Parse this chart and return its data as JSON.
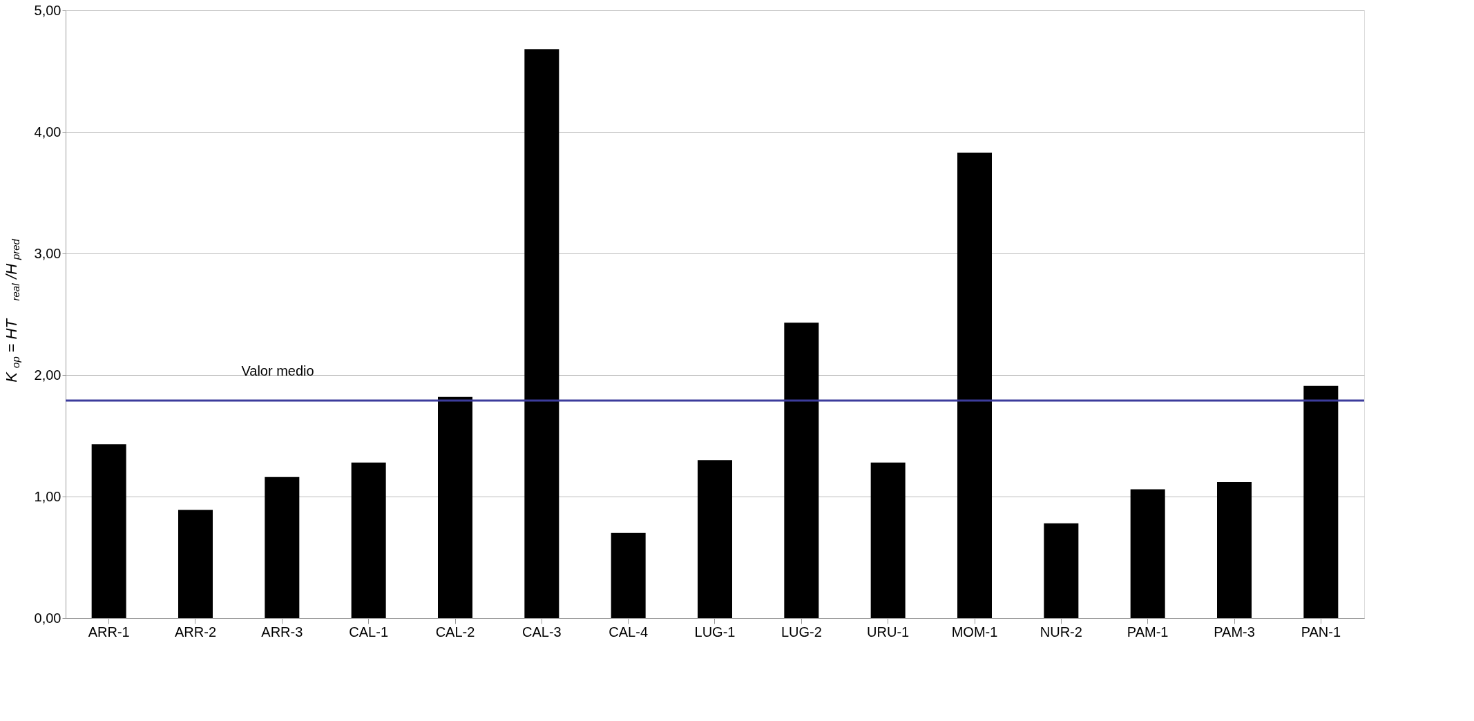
{
  "chart_data": {
    "type": "bar",
    "ylabel": "K$_{op}$ = HT$_{real}$/H$_{pred}$",
    "categories": [
      "ARR-1",
      "ARR-2",
      "ARR-3",
      "CAL-1",
      "CAL-2",
      "CAL-3",
      "CAL-4",
      "LUG-1",
      "LUG-2",
      "URU-1",
      "MOM-1",
      "NUR-2",
      "PAM-1",
      "PAM-3",
      "PAN-1"
    ],
    "values": [
      1.43,
      0.89,
      1.16,
      1.28,
      1.82,
      4.68,
      0.7,
      1.3,
      2.43,
      1.28,
      3.83,
      0.78,
      1.06,
      1.12,
      1.91
    ],
    "color": "#000000",
    "ylim": [
      0,
      5
    ],
    "yticks": [
      {
        "value": 0,
        "label": "0,00"
      },
      {
        "value": 1,
        "label": "1,00"
      },
      {
        "value": 2,
        "label": "2,00"
      },
      {
        "value": 3,
        "label": "3,00"
      },
      {
        "value": 4,
        "label": "4,00"
      },
      {
        "value": 5,
        "label": "5,00"
      }
    ],
    "grid": "y",
    "ref_lines": [
      {
        "axis": "y",
        "value": 1.79,
        "label": "Valor medio",
        "color": "#3c3c9c"
      }
    ]
  }
}
